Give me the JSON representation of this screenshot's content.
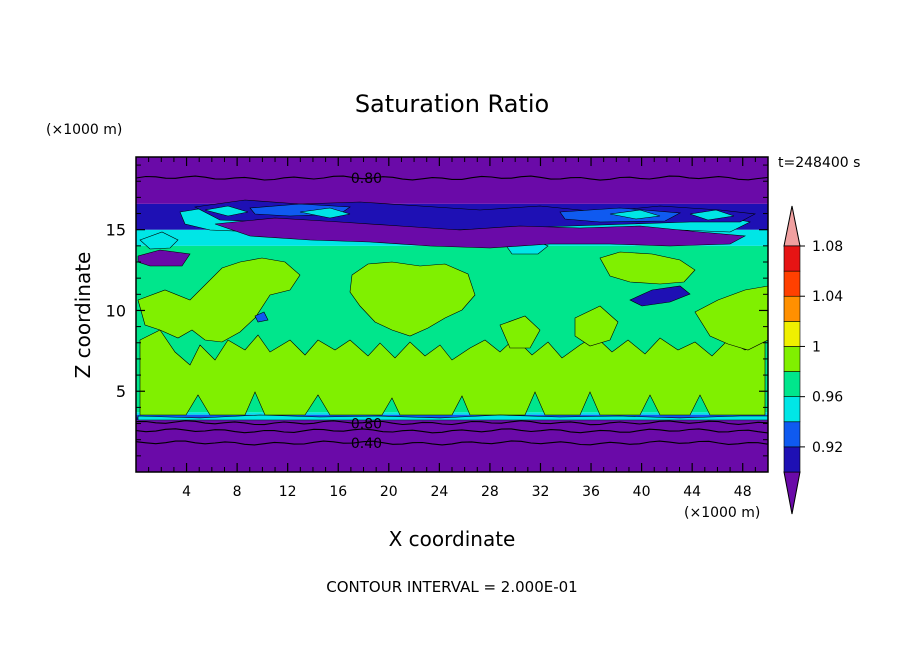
{
  "chart_data": {
    "type": "heatmap",
    "title": "Saturation Ratio",
    "xlabel": "X coordinate",
    "ylabel": "Z coordinate",
    "x_unit": "(×1000 m)",
    "y_unit": "(×1000 m)",
    "time_label": "t=248400 s",
    "footer": "CONTOUR INTERVAL = 2.000E-01",
    "xlim": [
      0,
      50
    ],
    "ylim": [
      0,
      19.5
    ],
    "x_ticks": [
      "4",
      "8",
      "12",
      "16",
      "20",
      "24",
      "28",
      "32",
      "36",
      "40",
      "44",
      "48"
    ],
    "y_ticks": [
      "5",
      "10",
      "15"
    ],
    "contour_labels": [
      {
        "text": "0.80",
        "x": 17,
        "y": 18.2
      },
      {
        "text": "0.80",
        "x": 17,
        "y": 3.0
      },
      {
        "text": "0.40",
        "x": 17,
        "y": 1.8
      }
    ],
    "colorbar": {
      "ticks": [
        "1.08",
        "1.04",
        "1",
        "0.96",
        "0.92"
      ],
      "levels": [
        {
          "color": "#6a0aa8"
        },
        {
          "color": "#1e10b4"
        },
        {
          "color": "#0f5af0"
        },
        {
          "color": "#00e6e6"
        },
        {
          "color": "#00e68c"
        },
        {
          "color": "#80f000"
        },
        {
          "color": "#f0f000"
        },
        {
          "color": "#ff9000"
        },
        {
          "color": "#ff4000"
        },
        {
          "color": "#e61414"
        },
        {
          "color": "#f0a0a0"
        }
      ]
    },
    "bands": [
      {
        "y0": 0,
        "y1": 3.2,
        "color": "#6a0aa8"
      },
      {
        "y0": 3.2,
        "y1": 3.4,
        "color": "#1e10b4"
      },
      {
        "y0": 3.4,
        "y1": 3.55,
        "color": "#0f5af0"
      },
      {
        "y0": 3.55,
        "y1": 3.7,
        "color": "#00e6e6"
      },
      {
        "y0": 3.7,
        "y1": 14.0,
        "color": "#00e68c"
      },
      {
        "y0": 14.0,
        "y1": 15.0,
        "color": "#00e6e6"
      },
      {
        "y0": 15.0,
        "y1": 16.6,
        "color": "#1e10b4"
      },
      {
        "y0": 16.6,
        "y1": 19.5,
        "color": "#6a0aa8"
      }
    ]
  }
}
